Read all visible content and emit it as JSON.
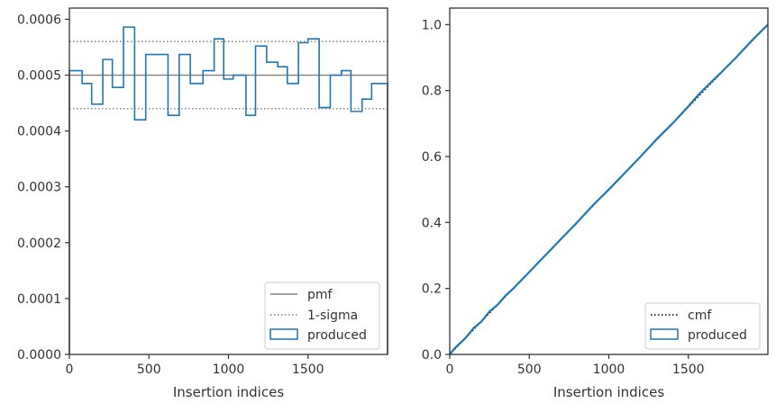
{
  "chart_data": [
    {
      "type": "step",
      "xlabel": "Insertion indices",
      "ylabel": "",
      "xlim": [
        0,
        2000
      ],
      "ylim": [
        0,
        0.00062
      ],
      "xticks": [
        0,
        500,
        1000,
        1500
      ],
      "xtick_labels": [
        "0",
        "500",
        "1000",
        "1500"
      ],
      "yticks": [
        0,
        0.0001,
        0.0002,
        0.0003,
        0.0004,
        0.0005,
        0.0006
      ],
      "ytick_labels": [
        "0.0000",
        "0.0001",
        "0.0002",
        "0.0003",
        "0.0004",
        "0.0005",
        "0.0006"
      ],
      "legend_position": "bottom-right",
      "reference_lines": [
        {
          "name": "pmf",
          "value": 0.0005,
          "style": "solid",
          "color": "#808080"
        },
        {
          "name": "1-sigma",
          "value": 0.00056,
          "style": "dotted",
          "color": "#808080"
        },
        {
          "name": "1-sigma",
          "value": 0.00044,
          "style": "dotted",
          "color": "#808080"
        }
      ],
      "legend": [
        {
          "label": "pmf",
          "style": "solid",
          "color": "#808080"
        },
        {
          "label": "1-sigma",
          "style": "dotted",
          "color": "#808080"
        },
        {
          "label": "produced",
          "style": "box",
          "color": "#1f77b4"
        }
      ],
      "series": [
        {
          "name": "produced",
          "color": "#1f77b4",
          "bin_edges": [
            0,
            80,
            140,
            210,
            270,
            340,
            410,
            480,
            620,
            690,
            760,
            840,
            910,
            970,
            1030,
            1110,
            1170,
            1240,
            1310,
            1370,
            1440,
            1500,
            1570,
            1640,
            1710,
            1770,
            1840,
            1900,
            1940,
            2000
          ],
          "values": [
            0.000508,
            0.000485,
            0.000448,
            0.000528,
            0.000478,
            0.000586,
            0.00042,
            0.000537,
            0.000428,
            0.000537,
            0.000485,
            0.000508,
            0.000565,
            0.000493,
            0.0005,
            0.000428,
            0.000552,
            0.000523,
            0.000515,
            0.000485,
            0.000558,
            0.000565,
            0.000442,
            0.0005,
            0.000508,
            0.000435,
            0.000457,
            0.000485,
            0.000485
          ]
        }
      ]
    },
    {
      "type": "line",
      "xlabel": "Insertion indices",
      "ylabel": "",
      "xlim": [
        0,
        2000
      ],
      "ylim": [
        0,
        1.05
      ],
      "xticks": [
        0,
        500,
        1000,
        1500
      ],
      "xtick_labels": [
        "0",
        "500",
        "1000",
        "1500"
      ],
      "yticks": [
        0,
        0.2,
        0.4,
        0.6,
        0.8,
        1.0
      ],
      "ytick_labels": [
        "0.0",
        "0.2",
        "0.4",
        "0.6",
        "0.8",
        "1.0"
      ],
      "legend_position": "bottom-right",
      "legend": [
        {
          "label": "cmf",
          "style": "dotted",
          "color": "#000000"
        },
        {
          "label": "produced",
          "style": "box",
          "color": "#1f77b4"
        }
      ],
      "series": [
        {
          "name": "cmf",
          "style": "dotted",
          "color": "#000000",
          "x": [
            0,
            2000
          ],
          "y": [
            0,
            1.0
          ]
        },
        {
          "name": "produced",
          "style": "solid",
          "color": "#1f77b4",
          "x": [
            0,
            30,
            60,
            100,
            150,
            200,
            250,
            300,
            350,
            400,
            450,
            500,
            600,
            700,
            800,
            900,
            1000,
            1100,
            1200,
            1300,
            1400,
            1500,
            1550,
            1600,
            1700,
            1800,
            1900,
            2000
          ],
          "y": [
            0,
            0.018,
            0.032,
            0.05,
            0.08,
            0.1,
            0.13,
            0.15,
            0.178,
            0.2,
            0.225,
            0.25,
            0.3,
            0.35,
            0.4,
            0.452,
            0.5,
            0.55,
            0.6,
            0.652,
            0.7,
            0.752,
            0.78,
            0.805,
            0.852,
            0.9,
            0.952,
            1.0
          ]
        }
      ]
    }
  ]
}
